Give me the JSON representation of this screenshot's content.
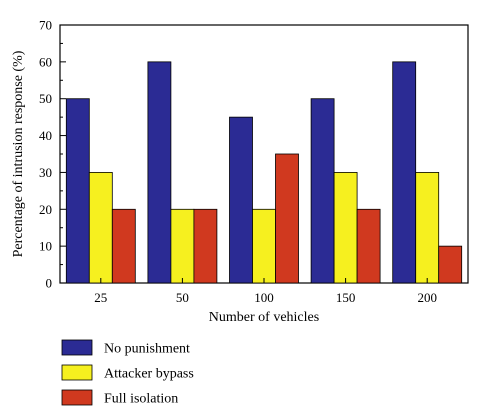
{
  "chart_data": {
    "type": "bar",
    "xlabel": "Number of vehicles",
    "ylabel": "Percentage of intrusion response (%)",
    "categories": [
      "25",
      "50",
      "100",
      "150",
      "200"
    ],
    "ylim": [
      0,
      70
    ],
    "yticks": [
      0,
      10,
      20,
      30,
      40,
      50,
      60,
      70
    ],
    "series": [
      {
        "name": "No punishment",
        "color": "#2b2b94",
        "values": [
          50,
          60,
          45,
          50,
          60
        ]
      },
      {
        "name": "Attacker bypass",
        "color": "#f6f01f",
        "values": [
          30,
          20,
          20,
          30,
          30
        ]
      },
      {
        "name": "Full isolation",
        "color": "#d0391f",
        "values": [
          20,
          20,
          35,
          20,
          10
        ]
      }
    ],
    "legend_position": "bottom-left"
  }
}
